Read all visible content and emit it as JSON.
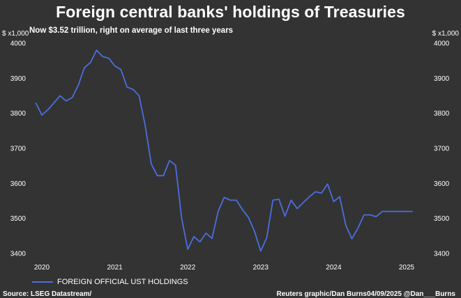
{
  "title": "Foreign central banks' holdings of Treasuries",
  "subtitle": "Now $3.52 trillion, right on average of last three years",
  "unit_left": "$ x1,000",
  "unit_right": "$ x1,000",
  "source": "Source: LSEG Datastream/",
  "credit": "Reuters graphic/Dan Burns04/09/2025 @Dan___Burns",
  "legend_label": "FOREIGN OFFICIAL UST HOLDINGS",
  "colors": {
    "line": "#4a6ee0",
    "background": "#333333",
    "text": "#ffffff"
  },
  "chart_data": {
    "type": "line",
    "title": "Foreign central banks' holdings of Treasuries",
    "subtitle": "Now $3.52 trillion, right on average of last three years",
    "ylabel": "$ x1,000",
    "ylim": [
      3380,
      4000
    ],
    "yticks": [
      3400,
      3500,
      3600,
      3700,
      3800,
      3900,
      4000
    ],
    "xlim": [
      2019.83,
      2025.33
    ],
    "xticks": [
      2020,
      2021,
      2022,
      2023,
      2024,
      2025
    ],
    "grid": false,
    "legend": "bottom-left",
    "series": [
      {
        "name": "FOREIGN OFFICIAL UST HOLDINGS",
        "color": "#4a6ee0",
        "x": [
          2019.917,
          2020.0,
          2020.083,
          2020.167,
          2020.25,
          2020.333,
          2020.417,
          2020.5,
          2020.583,
          2020.667,
          2020.75,
          2020.833,
          2020.917,
          2021.0,
          2021.083,
          2021.167,
          2021.25,
          2021.333,
          2021.417,
          2021.5,
          2021.583,
          2021.667,
          2021.75,
          2021.833,
          2021.917,
          2022.0,
          2022.083,
          2022.167,
          2022.25,
          2022.333,
          2022.417,
          2022.5,
          2022.583,
          2022.667,
          2022.75,
          2022.833,
          2022.917,
          2023.0,
          2023.083,
          2023.167,
          2023.25,
          2023.333,
          2023.417,
          2023.5,
          2023.583,
          2023.667,
          2023.75,
          2023.833,
          2023.917,
          2024.0,
          2024.083,
          2024.167,
          2024.25,
          2024.333,
          2024.417,
          2024.5,
          2024.583,
          2024.667,
          2024.75,
          2024.833,
          2024.917,
          2025.0,
          2025.083
        ],
        "values": [
          3830,
          3795,
          3810,
          3830,
          3850,
          3835,
          3845,
          3880,
          3930,
          3945,
          3980,
          3962,
          3957,
          3935,
          3925,
          3875,
          3868,
          3850,
          3765,
          3655,
          3622,
          3622,
          3665,
          3652,
          3500,
          3412,
          3448,
          3433,
          3458,
          3443,
          3520,
          3560,
          3552,
          3552,
          3525,
          3503,
          3462,
          3407,
          3445,
          3552,
          3555,
          3506,
          3552,
          3528,
          3545,
          3562,
          3576,
          3572,
          3598,
          3548,
          3562,
          3480,
          3442,
          3472,
          3510,
          3510,
          3505,
          3520,
          3520,
          3520,
          3520,
          3520,
          3520
        ]
      }
    ]
  }
}
